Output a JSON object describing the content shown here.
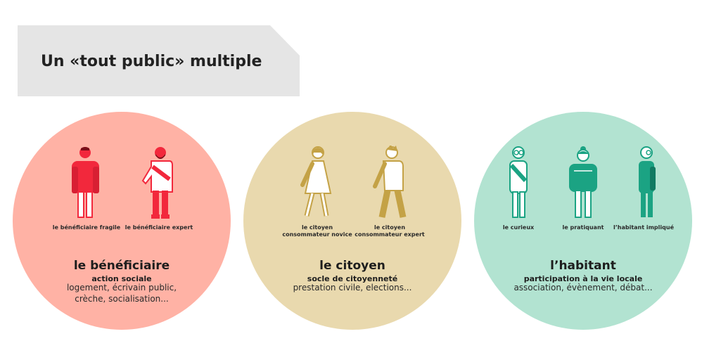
{
  "title": "Un «tout public» multiple",
  "colors": {
    "banner": "#e5e5e5",
    "beneficiaire_bg": "#ffb2a5",
    "beneficiaire_accent": "#f2283c",
    "citoyen_bg": "#e9d9ae",
    "citoyen_accent": "#c4a246",
    "habitant_bg": "#b2e3d1",
    "habitant_accent": "#1ba383"
  },
  "groups": [
    {
      "heading": "le bénéficiaire",
      "subheading": "action sociale",
      "description": "logement, écrivain public, crèche, socialisation...",
      "figures": [
        {
          "icon": "person-fragile-icon",
          "label": "le bénéficiaire fragile"
        },
        {
          "icon": "person-expert-icon",
          "label": "le bénéficiaire expert"
        }
      ]
    },
    {
      "heading": "le citoyen",
      "subheading": "socle de citoyenneté",
      "description": "prestation civile, elections...",
      "figures": [
        {
          "icon": "person-walking-woman-icon",
          "label": "le citoyen consommateur novice"
        },
        {
          "icon": "person-walking-man-icon",
          "label": "le citoyen consommateur expert"
        }
      ]
    },
    {
      "heading": "l’habitant",
      "subheading": "participation à la vie locale",
      "description": "association, évènement, débat...",
      "figures": [
        {
          "icon": "person-curious-icon",
          "label": "le curieux"
        },
        {
          "icon": "person-practitioner-icon",
          "label": "le pratiquant"
        },
        {
          "icon": "person-involved-icon",
          "label": "l’habitant impliqué"
        }
      ]
    }
  ]
}
